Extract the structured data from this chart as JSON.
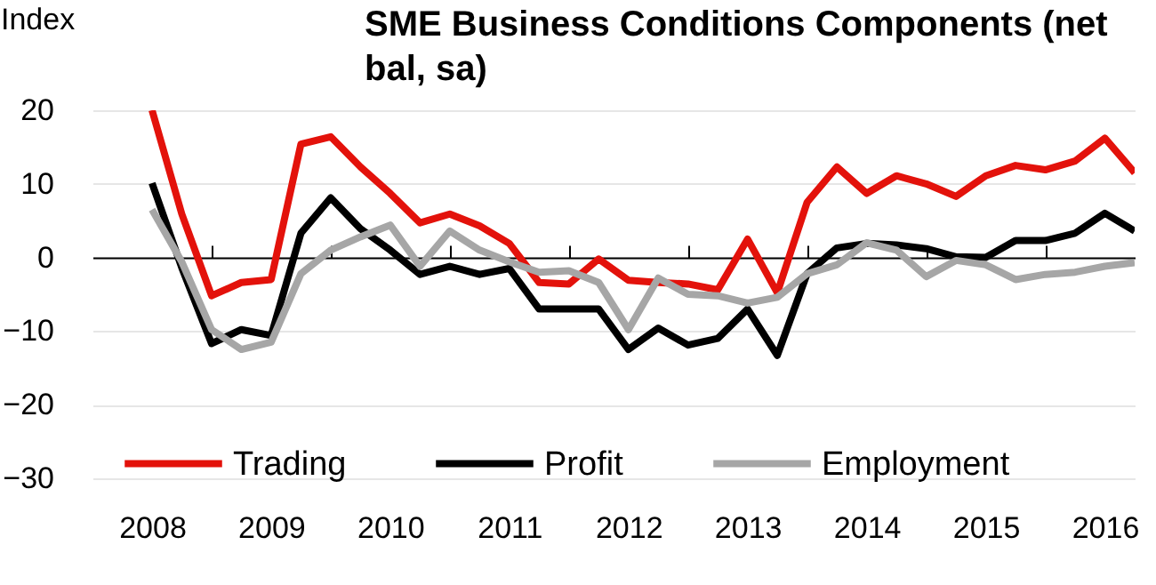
{
  "chart_data": {
    "type": "line",
    "title": "SME Business Conditions Components (net bal, sa)",
    "ylabel": "Index",
    "x": [
      2008.5,
      2008.75,
      2009,
      2009.25,
      2009.5,
      2009.75,
      2010,
      2010.25,
      2010.5,
      2010.75,
      2011,
      2011.25,
      2011.5,
      2011.75,
      2012,
      2012.25,
      2012.5,
      2012.75,
      2013,
      2013.25,
      2013.5,
      2013.75,
      2014,
      2014.25,
      2014.5,
      2014.75,
      2015,
      2015.25,
      2015.5,
      2015.75,
      2016,
      2016.25,
      2016.5,
      2016.75
    ],
    "series": [
      {
        "name": "Trading",
        "color": "#e3120b",
        "values": [
          20,
          5.9,
          -5.2,
          -3.4,
          -3,
          15.4,
          16.4,
          12.3,
          8.7,
          4.7,
          5.9,
          4.3,
          1.9,
          -3.4,
          -3.6,
          -0.2,
          -3.1,
          -3.4,
          -3.6,
          -4.4,
          2.5,
          -4.8,
          7.5,
          12.3,
          8.7,
          11.1,
          10,
          8.3,
          11.1,
          12.5,
          11.9,
          13.1,
          16.2,
          11.5
        ]
      },
      {
        "name": "Profit",
        "color": "#000000",
        "values": [
          10.1,
          -1.4,
          -11.7,
          -9.8,
          -10.6,
          3.3,
          8.1,
          3.9,
          1,
          -2.3,
          -1.2,
          -2.3,
          -1.5,
          -7,
          -7,
          -7,
          -12.5,
          -9.6,
          -11.9,
          -11,
          -7,
          -13.3,
          -2.2,
          1.3,
          1.9,
          1.7,
          1.2,
          0.1,
          0,
          2.3,
          2.3,
          3.3,
          6,
          3.6
        ]
      },
      {
        "name": "Employment",
        "color": "#a6a6a6",
        "values": [
          6.5,
          -0.6,
          -9.8,
          -12.5,
          -11.5,
          -2.2,
          1,
          2.8,
          4.4,
          -1.2,
          3.6,
          1,
          -0.6,
          -2,
          -1.8,
          -3.4,
          -9.8,
          -2.8,
          -5,
          -5.2,
          -6.2,
          -5.4,
          -2.2,
          -1,
          2,
          1,
          -2.6,
          -0.4,
          -1,
          -3,
          -2.3,
          -2,
          -1.2,
          -0.7
        ]
      }
    ],
    "xlim": [
      2008,
      2016.75
    ],
    "xticks": [
      {
        "value": 2008.5,
        "label": "2008"
      },
      {
        "value": 2009,
        "label": null
      },
      {
        "value": 2009.5,
        "label": "2009"
      },
      {
        "value": 2010,
        "label": null
      },
      {
        "value": 2010.5,
        "label": "2010"
      },
      {
        "value": 2011,
        "label": null
      },
      {
        "value": 2011.5,
        "label": "2011"
      },
      {
        "value": 2012,
        "label": null
      },
      {
        "value": 2012.5,
        "label": "2012"
      },
      {
        "value": 2013,
        "label": null
      },
      {
        "value": 2013.5,
        "label": "2013"
      },
      {
        "value": 2014,
        "label": null
      },
      {
        "value": 2014.5,
        "label": "2014"
      },
      {
        "value": 2015,
        "label": null
      },
      {
        "value": 2015.5,
        "label": "2015"
      },
      {
        "value": 2016,
        "label": null
      },
      {
        "value": 2016.5,
        "label": "2016"
      }
    ],
    "ylim": [
      -30,
      20
    ],
    "yticks": [
      -30,
      -20,
      -10,
      0,
      10,
      20
    ],
    "grid": "y",
    "legend": "bottom left",
    "line_style": "solid"
  }
}
